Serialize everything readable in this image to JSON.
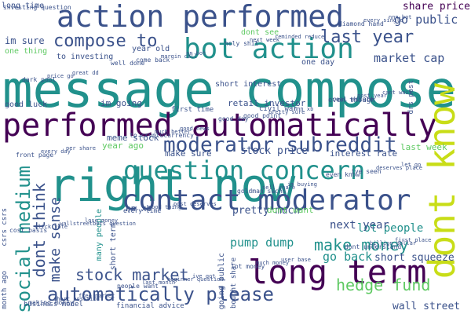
{
  "palette": {
    "dark_purple": "#440154",
    "indigo": "#3b528b",
    "teal": "#21918c",
    "green": "#5ec962",
    "yellow": "#c8dd17"
  },
  "words": [
    {
      "text": "message compose",
      "size": 64,
      "color": "#21918c",
      "rotate": false
    },
    {
      "text": "right now",
      "size": 58,
      "color": "#21918c",
      "rotate": false
    },
    {
      "text": "performed automatically",
      "size": 40,
      "color": "#440154",
      "rotate": false
    },
    {
      "text": "action performed",
      "size": 38,
      "color": "#3b528b",
      "rotate": false
    },
    {
      "text": "dont know",
      "size": 46,
      "color": "#c8dd17",
      "rotate": true
    },
    {
      "text": "contact moderator",
      "size": 36,
      "color": "#3b528b",
      "rotate": false
    },
    {
      "text": "long term",
      "size": 42,
      "color": "#440154",
      "rotate": false
    },
    {
      "text": "bot action",
      "size": 36,
      "color": "#21918c",
      "rotate": false
    },
    {
      "text": "question concern",
      "size": 32,
      "color": "#21918c",
      "rotate": false
    },
    {
      "text": "moderator subreddit",
      "size": 26,
      "color": "#3b528b",
      "rotate": false
    },
    {
      "text": "automatically please",
      "size": 24,
      "color": "#3b528b",
      "rotate": false
    },
    {
      "text": "social medium",
      "size": 24,
      "color": "#21918c",
      "rotate": true
    },
    {
      "text": "compose to",
      "size": 22,
      "color": "#3b528b",
      "rotate": false
    },
    {
      "text": "last year",
      "size": 22,
      "color": "#3b528b",
      "rotate": false
    },
    {
      "text": "make money",
      "size": 20,
      "color": "#21918c",
      "rotate": false
    },
    {
      "text": "hedge fund",
      "size": 20,
      "color": "#5ec962",
      "rotate": false
    },
    {
      "text": "stock market",
      "size": 20,
      "color": "#3b528b",
      "rotate": false
    },
    {
      "text": "dont think",
      "size": 20,
      "color": "#3b528b",
      "rotate": true
    },
    {
      "text": "make sense",
      "size": 18,
      "color": "#3b528b",
      "rotate": true
    },
    {
      "text": "market cap",
      "size": 15,
      "color": "#3b528b",
      "rotate": false
    },
    {
      "text": "pump dump",
      "size": 15,
      "color": "#21918c",
      "rotate": false
    },
    {
      "text": "go back",
      "size": 15,
      "color": "#21918c",
      "rotate": false
    },
    {
      "text": "go public",
      "size": 15,
      "color": "#3b528b",
      "rotate": false
    },
    {
      "text": "stock price",
      "size": 13,
      "color": "#3b528b",
      "rotate": false
    },
    {
      "text": "share price",
      "size": 13,
      "color": "#440154",
      "rotate": false
    },
    {
      "text": "lot people",
      "size": 14,
      "color": "#21918c",
      "rotate": false
    },
    {
      "text": "next year",
      "size": 14,
      "color": "#3b528b",
      "rotate": false
    },
    {
      "text": "short squeeze",
      "size": 13,
      "color": "#3b528b",
      "rotate": false
    },
    {
      "text": "wall street",
      "size": 13,
      "color": "#3b528b",
      "rotate": false
    },
    {
      "text": "pretty much",
      "size": 13,
      "color": "#3b528b",
      "rotate": false
    },
    {
      "text": "dont want",
      "size": 11,
      "color": "#5ec962",
      "rotate": false
    },
    {
      "text": "interest rate",
      "size": 11,
      "color": "#3b528b",
      "rotate": false
    },
    {
      "text": "last week",
      "size": 11,
      "color": "#5ec962",
      "rotate": false
    },
    {
      "text": "make sure",
      "size": 11,
      "color": "#3b528b",
      "rotate": false
    },
    {
      "text": "nn xb",
      "size": 11,
      "color": "#3b528b",
      "rotate": false
    },
    {
      "text": "im going",
      "size": 11,
      "color": "#3b528b",
      "rotate": false
    },
    {
      "text": "retail investor",
      "size": 11,
      "color": "#3b528b",
      "rotate": false
    },
    {
      "text": "meme stock",
      "size": 11,
      "color": "#3b528b",
      "rotate": false
    },
    {
      "text": "year ago",
      "size": 11,
      "color": "#5ec962",
      "rotate": false
    },
    {
      "text": "many people",
      "size": 10,
      "color": "#21918c",
      "rotate": true
    },
    {
      "text": "short term",
      "size": 10,
      "color": "#3b528b",
      "rotate": true
    },
    {
      "text": "short interest",
      "size": 10,
      "color": "#3b528b",
      "rotate": false
    },
    {
      "text": "im sure",
      "size": 12,
      "color": "#3b528b",
      "rotate": false
    },
    {
      "text": "long time",
      "size": 10,
      "color": "#3b528b",
      "rotate": false
    },
    {
      "text": "to investing",
      "size": 10,
      "color": "#3b528b",
      "rotate": false
    },
    {
      "text": "dont see",
      "size": 10,
      "color": "#5ec962",
      "rotate": false
    },
    {
      "text": "year old",
      "size": 10,
      "color": "#3b528b",
      "rotate": false
    },
    {
      "text": "one thing",
      "size": 10,
      "color": "#5ec962",
      "rotate": false
    },
    {
      "text": "good luck",
      "size": 10,
      "color": "#3b528b",
      "rotate": false
    },
    {
      "text": "one day",
      "size": 10,
      "color": "#3b528b",
      "rotate": false
    },
    {
      "text": "bought share",
      "size": 9,
      "color": "#3b528b",
      "rotate": true
    },
    {
      "text": "going public",
      "size": 10,
      "color": "#3b528b",
      "rotate": true
    },
    {
      "text": "even though",
      "size": 9,
      "color": "#3b528b",
      "rotate": false
    },
    {
      "text": "first time",
      "size": 9,
      "color": "#3b528b",
      "rotate": false
    },
    {
      "text": "civil war",
      "size": 9,
      "color": "#3b528b",
      "rotate": false
    },
    {
      "text": "drs post",
      "size": 9,
      "color": "#3b528b",
      "rotate": true
    },
    {
      "text": "month ago",
      "size": 9,
      "color": "#3b528b",
      "rotate": true
    },
    {
      "text": "csrs csrs",
      "size": 9,
      "color": "#3b528b",
      "rotate": true
    },
    {
      "text": "business model",
      "size": 9,
      "color": "#3b528b",
      "rotate": false
    },
    {
      "text": "financial advice",
      "size": 9,
      "color": "#3b528b",
      "rotate": false
    },
    {
      "text": "investing question",
      "size": 8,
      "color": "#3b528b",
      "rotate": false
    },
    {
      "text": "well done",
      "size": 8,
      "color": "#3b528b",
      "rotate": false
    },
    {
      "text": "good day",
      "size": 8,
      "color": "#3b528b",
      "rotate": false
    },
    {
      "text": "even know",
      "size": 8,
      "color": "#3b528b",
      "rotate": false
    },
    {
      "text": "cost basis",
      "size": 8,
      "color": "#3b528b",
      "rotate": false
    },
    {
      "text": "people want",
      "size": 8,
      "color": "#3b528b",
      "rotate": false
    },
    {
      "text": "holy shit",
      "size": 8,
      "color": "#3b528b",
      "rotate": false
    },
    {
      "text": "real estate",
      "size": 8,
      "color": "#3b528b",
      "rotate": false
    },
    {
      "text": "front page",
      "size": 8,
      "color": "#3b528b",
      "rotate": false
    },
    {
      "text": "every time",
      "size": 8,
      "color": "#3b528b",
      "rotate": false
    },
    {
      "text": "lot money",
      "size": 8,
      "color": "#3b528b",
      "rotate": false
    },
    {
      "text": "diamond hand",
      "size": 8,
      "color": "#3b528b",
      "rotate": false
    },
    {
      "text": "dark pool",
      "size": 8,
      "color": "#3b528b",
      "rotate": false
    },
    {
      "text": "to cryptocurrency",
      "size": 8,
      "color": "#3b528b",
      "rotate": false
    },
    {
      "text": "goldman sachs",
      "size": 8,
      "color": "#3b528b",
      "rotate": false
    },
    {
      "text": "dont understand",
      "size": 8,
      "color": "#3b528b",
      "rotate": false
    },
    {
      "text": "making money",
      "size": 8,
      "color": "#3b528b",
      "rotate": false
    },
    {
      "text": "come back",
      "size": 8,
      "color": "#3b528b",
      "rotate": false
    },
    {
      "text": "good point",
      "size": 8,
      "color": "#3b528b",
      "rotate": false
    },
    {
      "text": "ive seen",
      "size": 8,
      "color": "#3b528b",
      "rotate": false
    },
    {
      "text": "click vote",
      "size": 7,
      "color": "#3b528b",
      "rotate": false
    },
    {
      "text": "last month",
      "size": 7,
      "color": "#3b528b",
      "rotate": false
    },
    {
      "text": "next week",
      "size": 7,
      "color": "#3b528b",
      "rotate": false
    },
    {
      "text": "post year",
      "size": 7,
      "color": "#3b528b",
      "rotate": false
    },
    {
      "text": "every day",
      "size": 7,
      "color": "#3b528b",
      "rotate": false
    },
    {
      "text": "good thing",
      "size": 7,
      "color": "#3b528b",
      "rotate": false
    },
    {
      "text": "much money",
      "size": 7,
      "color": "#3b528b",
      "rotate": false
    },
    {
      "text": "every single",
      "size": 7,
      "color": "#3b528b",
      "rotate": false
    },
    {
      "text": "price go",
      "size": 7,
      "color": "#3b528b",
      "rotate": false
    },
    {
      "text": "much better",
      "size": 7,
      "color": "#3b528b",
      "rotate": false
    },
    {
      "text": "sell share",
      "size": 7,
      "color": "#3b528b",
      "rotate": false
    },
    {
      "text": "billion dollar",
      "size": 7,
      "color": "#3b528b",
      "rotate": false
    },
    {
      "text": "short position",
      "size": 7,
      "color": "#3b528b",
      "rotate": false
    },
    {
      "text": "margin call",
      "size": 7,
      "color": "#3b528b",
      "rotate": false
    },
    {
      "text": "pretty sure",
      "size": 7,
      "color": "#3b528b",
      "rotate": false
    },
    {
      "text": "deserves place",
      "size": 7,
      "color": "#3b528b",
      "rotate": false
    },
    {
      "text": "wallstreetbets question",
      "size": 7,
      "color": "#3b528b",
      "rotate": false
    },
    {
      "text": "beginner question",
      "size": 7,
      "color": "#3b528b",
      "rotate": false
    },
    {
      "text": "reminded reduce",
      "size": 7,
      "color": "#3b528b",
      "rotate": false
    },
    {
      "text": "cant wait",
      "size": 7,
      "color": "#3b528b",
      "rotate": false
    },
    {
      "text": "per share",
      "size": 7,
      "color": "#3b528b",
      "rotate": false
    },
    {
      "text": "post deserves",
      "size": 7,
      "color": "#3b528b",
      "rotate": false
    },
    {
      "text": "user base",
      "size": 7,
      "color": "#3b528b",
      "rotate": false
    },
    {
      "text": "nnn bot",
      "size": 7,
      "color": "#3b528b",
      "rotate": false
    },
    {
      "text": "great dd",
      "size": 7,
      "color": "#3b528b",
      "rotate": false
    },
    {
      "text": "good news",
      "size": 7,
      "color": "#3b528b",
      "rotate": false
    },
    {
      "text": "im buying",
      "size": 7,
      "color": "#3b528b",
      "rotate": false
    },
    {
      "text": "first place",
      "size": 7,
      "color": "#3b528b",
      "rotate": false
    },
    {
      "text": "free market",
      "size": 7,
      "color": "#3b528b",
      "rotate": false
    },
    {
      "text": "nn bot",
      "size": 7,
      "color": "#3b528b",
      "rotate": false
    },
    {
      "text": "nnn xb",
      "size": 7,
      "color": "#3b528b",
      "rotate": false
    },
    {
      "text": "let go",
      "size": 7,
      "color": "#3b528b",
      "rotate": false
    },
    {
      "text": "lose money",
      "size": 7,
      "color": "#3b528b",
      "rotate": false
    },
    {
      "text": "ive got",
      "size": 7,
      "color": "#3b528b",
      "rotate": false
    }
  ]
}
